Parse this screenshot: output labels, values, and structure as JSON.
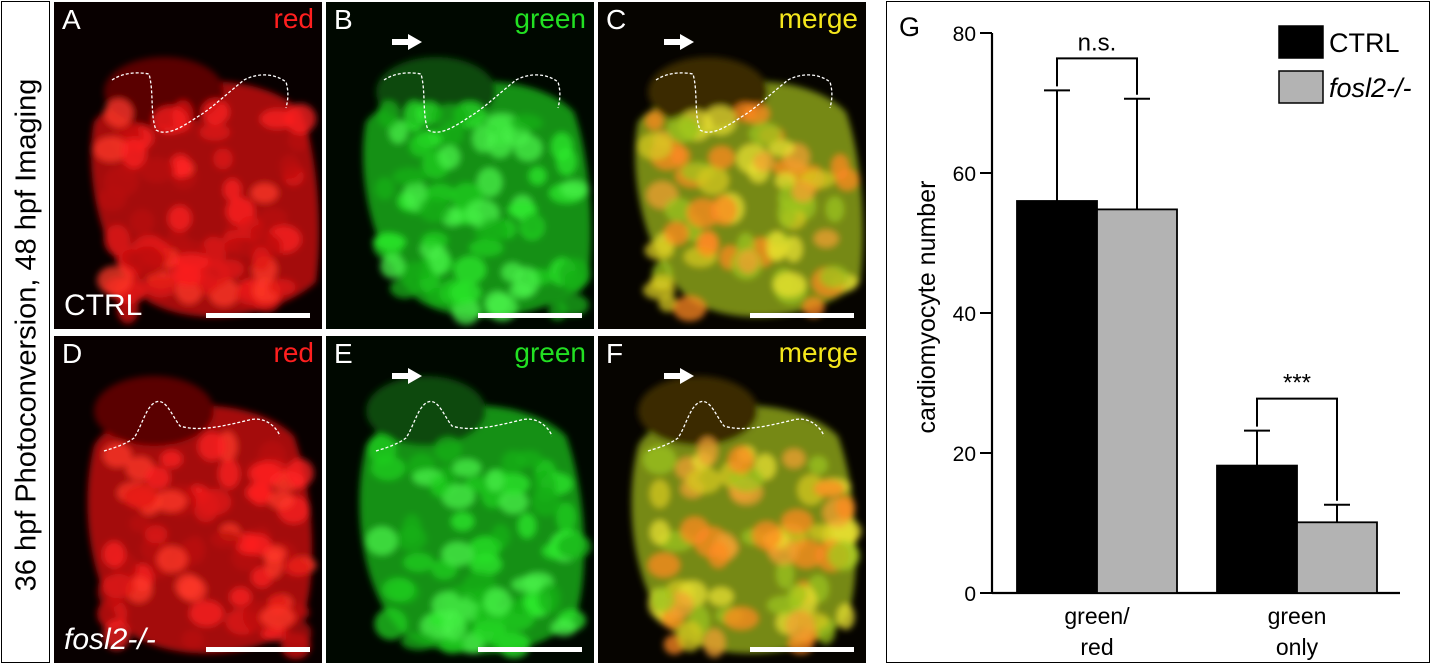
{
  "side_label": "36 hpf Photoconversion, 48 hpf Imaging",
  "panels": [
    {
      "letter": "A",
      "channel": "red",
      "genotype": "CTRL"
    },
    {
      "letter": "B",
      "channel": "green",
      "genotype": ""
    },
    {
      "letter": "C",
      "channel": "merge",
      "genotype": ""
    },
    {
      "letter": "D",
      "channel": "red",
      "genotype": "fosl2-/-"
    },
    {
      "letter": "E",
      "channel": "green",
      "genotype": ""
    },
    {
      "letter": "F",
      "channel": "merge",
      "genotype": ""
    }
  ],
  "colors": {
    "red_channel": "#ff1f1f",
    "green_channel": "#22e022",
    "merge_label": "#f4e61c",
    "ctrl_bar": "#000000",
    "mutant_bar": "#b3b3b3"
  },
  "chart_data": {
    "type": "bar",
    "panel_letter": "G",
    "title": "",
    "ylabel": "cardiomyocyte number",
    "xlabel": "",
    "ylim": [
      0,
      80
    ],
    "yticks": [
      0,
      20,
      40,
      60,
      80
    ],
    "categories": [
      "green/\nred",
      "green\nonly"
    ],
    "series": [
      {
        "name": "CTRL",
        "color": "#000000",
        "values": [
          56,
          18.2
        ],
        "errors": [
          15.8,
          5
        ]
      },
      {
        "name": "fosl2-/-",
        "color": "#b3b3b3",
        "values": [
          54.8,
          10.1
        ],
        "errors": [
          15.8,
          2.5
        ]
      }
    ],
    "significance": [
      "n.s.",
      "***"
    ],
    "legend_position": "top-right",
    "grid": false
  }
}
